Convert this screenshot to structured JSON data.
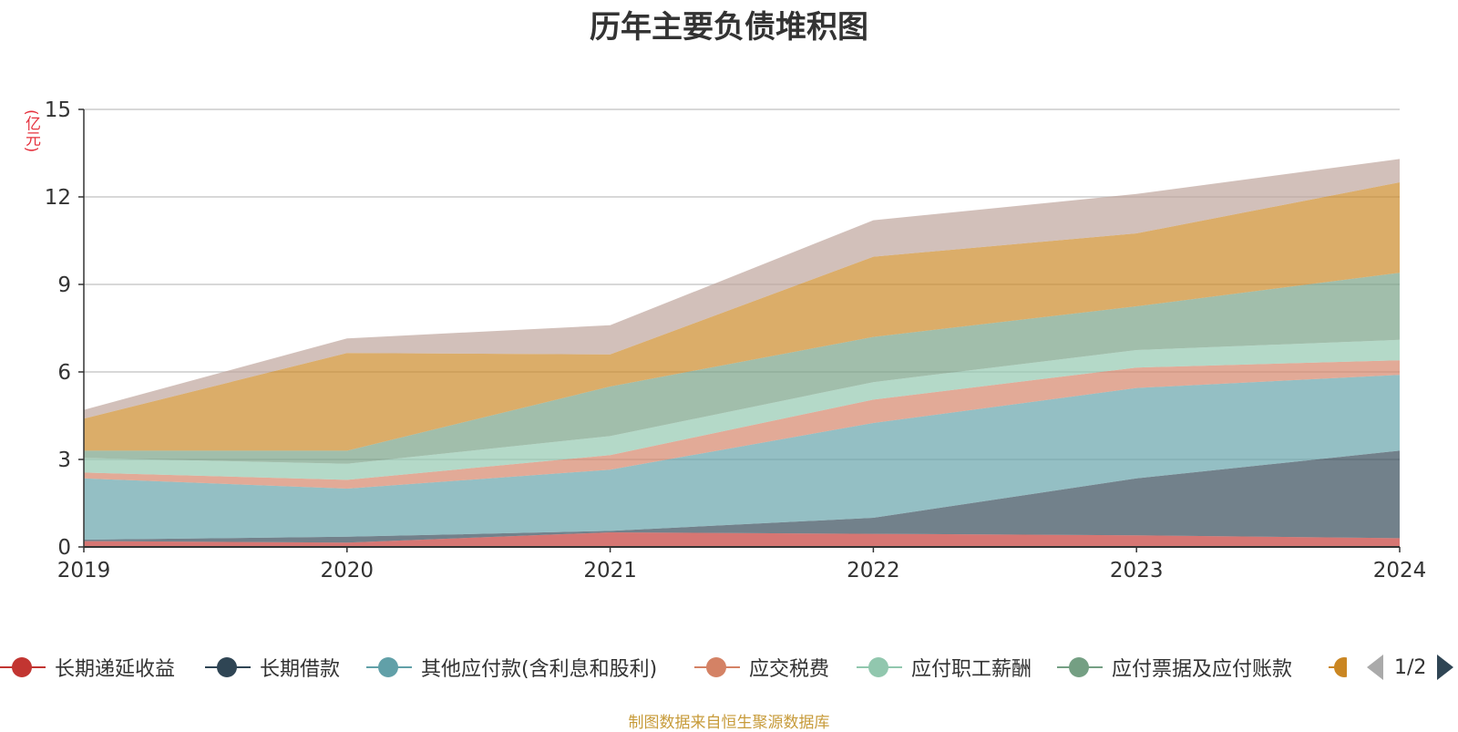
{
  "chart_data": {
    "type": "area",
    "stacked": true,
    "title": "历年主要负债堆积图",
    "unit_label": "(亿元)",
    "categories": [
      "2019",
      "2020",
      "2021",
      "2022",
      "2023",
      "2024"
    ],
    "ylim": [
      0,
      15
    ],
    "yticks": [
      "0",
      "3",
      "6",
      "9",
      "12",
      "15"
    ],
    "grid": true,
    "series": [
      {
        "name": "长期递延收益",
        "color": "#c23531",
        "values": [
          0.2,
          0.15,
          0.5,
          0.45,
          0.4,
          0.3
        ]
      },
      {
        "name": "长期借款",
        "color": "#2f4554",
        "values": [
          0.05,
          0.2,
          0.05,
          0.55,
          1.95,
          3.0
        ]
      },
      {
        "name": "其他应付款(含利息和股利)",
        "color": "#61a0a8",
        "values": [
          2.1,
          1.65,
          2.1,
          3.25,
          3.1,
          2.6
        ]
      },
      {
        "name": "应交税费",
        "color": "#d48265",
        "values": [
          0.2,
          0.3,
          0.5,
          0.8,
          0.7,
          0.5
        ]
      },
      {
        "name": "应付职工薪酬",
        "color": "#91c7ae",
        "values": [
          0.5,
          0.55,
          0.65,
          0.6,
          0.6,
          0.7
        ]
      },
      {
        "name": "应付票据及应付账款",
        "color": "#749f83",
        "values": [
          0.25,
          0.45,
          1.7,
          1.55,
          1.5,
          2.3
        ]
      },
      {
        "name": "",
        "color": "#ca8622",
        "values": [
          1.1,
          3.35,
          1.1,
          2.75,
          2.5,
          3.1
        ]
      },
      {
        "name": "",
        "color": "#bda29a",
        "values": [
          0.3,
          0.5,
          1.0,
          1.25,
          1.35,
          0.8
        ]
      }
    ]
  },
  "legend": {
    "items": [
      {
        "label": "长期递延收益",
        "color": "#c23531"
      },
      {
        "label": "长期借款",
        "color": "#2f4554"
      },
      {
        "label": "其他应付款(含利息和股利)",
        "color": "#61a0a8"
      },
      {
        "label": "应交税费",
        "color": "#d48265"
      },
      {
        "label": "应付职工薪酬",
        "color": "#91c7ae"
      },
      {
        "label": "应付票据及应付账款",
        "color": "#749f83"
      }
    ],
    "page_indicator": "1/2"
  },
  "source_note": "制图数据来自恒生聚源数据库"
}
